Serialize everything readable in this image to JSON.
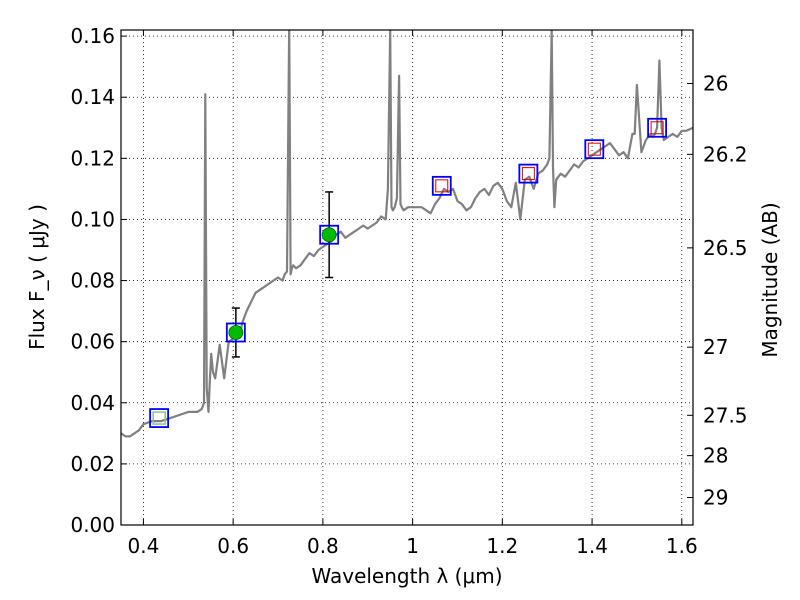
{
  "chart_data": {
    "type": "line",
    "xlabel": "Wavelength  λ (μm)",
    "ylabel": "Flux  F_ν  ( μJy )",
    "y2label": "Magnitude (AB)",
    "xlim": [
      0.35,
      1.625
    ],
    "ylim": [
      0.0,
      0.162
    ],
    "grid": true,
    "x_ticks": [
      "0.4",
      "0.6",
      "0.8",
      "1",
      "1.2",
      "1.4",
      "1.6"
    ],
    "x_tick_values": [
      0.4,
      0.6,
      0.8,
      1.0,
      1.2,
      1.4,
      1.6
    ],
    "y_ticks": [
      "0.00",
      "0.02",
      "0.04",
      "0.06",
      "0.08",
      "0.10",
      "0.12",
      "0.14",
      "0.16"
    ],
    "y_tick_values": [
      0.0,
      0.02,
      0.04,
      0.06,
      0.08,
      0.1,
      0.12,
      0.14,
      0.16
    ],
    "y2_ticks": [
      "26",
      "26.2",
      "26.5",
      "27",
      "27.5",
      "28",
      "29"
    ],
    "y2_tick_flux": [
      0.1445,
      0.1213,
      0.0907,
      0.0582,
      0.0359,
      0.0227,
      0.009
    ],
    "colors": {
      "spectrum": "#808080",
      "box": "#0000ff",
      "model_point": "#d00000",
      "detection": "#00bb00",
      "upper_limit": "#90c090",
      "errorbar": "#000000"
    },
    "spectrum": {
      "x": [
        0.35,
        0.36,
        0.37,
        0.38,
        0.39,
        0.4,
        0.42,
        0.44,
        0.46,
        0.48,
        0.5,
        0.52,
        0.53,
        0.535,
        0.538,
        0.541,
        0.545,
        0.548,
        0.551,
        0.555,
        0.56,
        0.57,
        0.58,
        0.59,
        0.6,
        0.615,
        0.62,
        0.63,
        0.64,
        0.65,
        0.66,
        0.67,
        0.68,
        0.69,
        0.7,
        0.71,
        0.715,
        0.72,
        0.725,
        0.728,
        0.731,
        0.734,
        0.74,
        0.75,
        0.76,
        0.77,
        0.78,
        0.79,
        0.8,
        0.81,
        0.82,
        0.83,
        0.84,
        0.85,
        0.86,
        0.87,
        0.88,
        0.89,
        0.9,
        0.91,
        0.92,
        0.93,
        0.94,
        0.945,
        0.95,
        0.953,
        0.956,
        0.96,
        0.965,
        0.97,
        0.973,
        0.976,
        0.98,
        0.99,
        1.0,
        1.02,
        1.04,
        1.05,
        1.06,
        1.07,
        1.08,
        1.09,
        1.1,
        1.11,
        1.12,
        1.13,
        1.14,
        1.15,
        1.16,
        1.17,
        1.18,
        1.19,
        1.2,
        1.21,
        1.22,
        1.23,
        1.24,
        1.25,
        1.26,
        1.27,
        1.28,
        1.29,
        1.3,
        1.305,
        1.31,
        1.313,
        1.316,
        1.32,
        1.33,
        1.34,
        1.35,
        1.36,
        1.37,
        1.38,
        1.39,
        1.4,
        1.41,
        1.42,
        1.43,
        1.44,
        1.45,
        1.46,
        1.47,
        1.48,
        1.49,
        1.495,
        1.5,
        1.51,
        1.52,
        1.53,
        1.535,
        1.54,
        1.545,
        1.55,
        1.555,
        1.56,
        1.57,
        1.58,
        1.59,
        1.6,
        1.61,
        1.625
      ],
      "y": [
        0.03,
        0.029,
        0.029,
        0.03,
        0.031,
        0.033,
        0.034,
        0.034,
        0.035,
        0.036,
        0.037,
        0.037,
        0.038,
        0.04,
        0.141,
        0.045,
        0.037,
        0.047,
        0.056,
        0.05,
        0.048,
        0.059,
        0.048,
        0.06,
        0.061,
        0.062,
        0.066,
        0.07,
        0.073,
        0.076,
        0.077,
        0.078,
        0.079,
        0.08,
        0.081,
        0.08,
        0.082,
        0.083,
        0.164,
        0.082,
        0.084,
        0.085,
        0.084,
        0.085,
        0.087,
        0.089,
        0.088,
        0.09,
        0.091,
        0.092,
        0.093,
        0.095,
        0.096,
        0.094,
        0.095,
        0.096,
        0.097,
        0.098,
        0.097,
        0.098,
        0.099,
        0.101,
        0.1,
        0.11,
        0.162,
        0.104,
        0.103,
        0.104,
        0.107,
        0.147,
        0.105,
        0.104,
        0.103,
        0.104,
        0.104,
        0.104,
        0.102,
        0.105,
        0.107,
        0.11,
        0.109,
        0.11,
        0.106,
        0.105,
        0.103,
        0.104,
        0.107,
        0.109,
        0.11,
        0.108,
        0.111,
        0.112,
        0.11,
        0.106,
        0.104,
        0.112,
        0.1,
        0.113,
        0.114,
        0.11,
        0.115,
        0.116,
        0.118,
        0.12,
        0.162,
        0.117,
        0.104,
        0.113,
        0.115,
        0.114,
        0.116,
        0.118,
        0.117,
        0.119,
        0.12,
        0.121,
        0.122,
        0.123,
        0.124,
        0.125,
        0.123,
        0.121,
        0.122,
        0.12,
        0.128,
        0.128,
        0.144,
        0.122,
        0.126,
        0.128,
        0.127,
        0.128,
        0.13,
        0.152,
        0.13,
        0.126,
        0.127,
        0.128,
        0.127,
        0.129,
        0.129,
        0.13
      ]
    },
    "photometry": [
      {
        "x": 0.435,
        "box": 0.035,
        "model": 0.035,
        "obs": 0.035,
        "kind": "upper"
      },
      {
        "x": 0.606,
        "box": 0.063,
        "model": 0.063,
        "obs": 0.063,
        "err": [
          0.055,
          0.071
        ],
        "kind": "detection"
      },
      {
        "x": 0.814,
        "box": 0.095,
        "model": 0.095,
        "obs": 0.095,
        "err": [
          0.081,
          0.109
        ],
        "kind": "detection"
      },
      {
        "x": 1.065,
        "box": 0.111,
        "model": 0.111,
        "kind": "model"
      },
      {
        "x": 1.258,
        "box": 0.115,
        "model": 0.115,
        "kind": "model"
      },
      {
        "x": 1.405,
        "box": 0.123,
        "model": 0.123,
        "kind": "model"
      },
      {
        "x": 1.545,
        "box": 0.13,
        "model": 0.13,
        "kind": "model"
      }
    ]
  }
}
